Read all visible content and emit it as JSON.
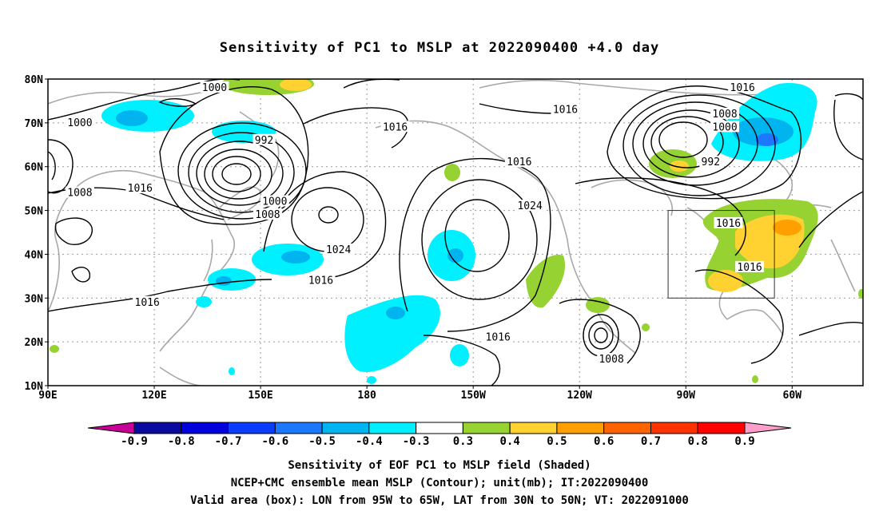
{
  "title": "Sensitivity of PC1 to MSLP at 2022090400 +4.0 day",
  "map": {
    "lat_labels": [
      "80N",
      "70N",
      "60N",
      "50N",
      "40N",
      "30N",
      "20N",
      "10N"
    ],
    "lon_labels": [
      "90E",
      "120E",
      "150E",
      "180",
      "150W",
      "120W",
      "90W",
      "60W"
    ],
    "contour_labels": [
      {
        "text": "1000",
        "lon": 137,
        "lat": 78
      },
      {
        "text": "1000",
        "lon": 99,
        "lat": 70
      },
      {
        "text": "992",
        "lon": 151,
        "lat": 66
      },
      {
        "text": "1016",
        "lon": 188,
        "lat": 69
      },
      {
        "text": "1016",
        "lon": 236,
        "lat": 73
      },
      {
        "text": "1016",
        "lon": 286,
        "lat": 78
      },
      {
        "text": "1008",
        "lon": 281,
        "lat": 72
      },
      {
        "text": "1000",
        "lon": 281,
        "lat": 69
      },
      {
        "text": "992",
        "lon": 277,
        "lat": 61
      },
      {
        "text": "1016",
        "lon": 223,
        "lat": 61
      },
      {
        "text": "1024",
        "lon": 226,
        "lat": 51
      },
      {
        "text": "1000",
        "lon": 154,
        "lat": 52
      },
      {
        "text": "1008",
        "lon": 152,
        "lat": 49
      },
      {
        "text": "1008",
        "lon": 99,
        "lat": 54
      },
      {
        "text": "1016",
        "lon": 116,
        "lat": 55
      },
      {
        "text": "1024",
        "lon": 172,
        "lat": 41
      },
      {
        "text": "1016",
        "lon": 167,
        "lat": 34
      },
      {
        "text": "1016",
        "lon": 118,
        "lat": 29
      },
      {
        "text": "1016",
        "lon": 217,
        "lat": 21
      },
      {
        "text": "1008",
        "lon": 249,
        "lat": 16
      },
      {
        "text": "1016",
        "lon": 282,
        "lat": 47
      },
      {
        "text": "1016",
        "lon": 288,
        "lat": 37
      }
    ],
    "valid_box": {
      "lon_min": -95,
      "lon_max": -65,
      "lat_min": 30,
      "lat_max": 50
    }
  },
  "colorbar": {
    "labels": [
      "-0.9",
      "-0.8",
      "-0.7",
      "-0.6",
      "-0.5",
      "-0.4",
      "-0.3",
      "0.3",
      "0.4",
      "0.5",
      "0.6",
      "0.7",
      "0.8",
      "0.9"
    ],
    "colors": [
      "#0a0aa0",
      "#0000dc",
      "#0a3cff",
      "#1e78ff",
      "#00b4f0",
      "#00f0ff",
      "#ffffff",
      "#96d232",
      "#ffd232",
      "#ffa000",
      "#ff6400",
      "#ff3200",
      "#ff0000"
    ],
    "left_tip_color": "#c80096",
    "right_tip_color": "#ff9ec8"
  },
  "captions": {
    "line1": "Sensitivity of EOF PC1 to MSLP field (Shaded)",
    "line2": "NCEP+CMC ensemble mean MSLP (Contour); unit(mb); IT:2022090400",
    "line3": "Valid area (box): LON from 95W to 65W, LAT from 30N to 50N; VT: 2022091000"
  }
}
